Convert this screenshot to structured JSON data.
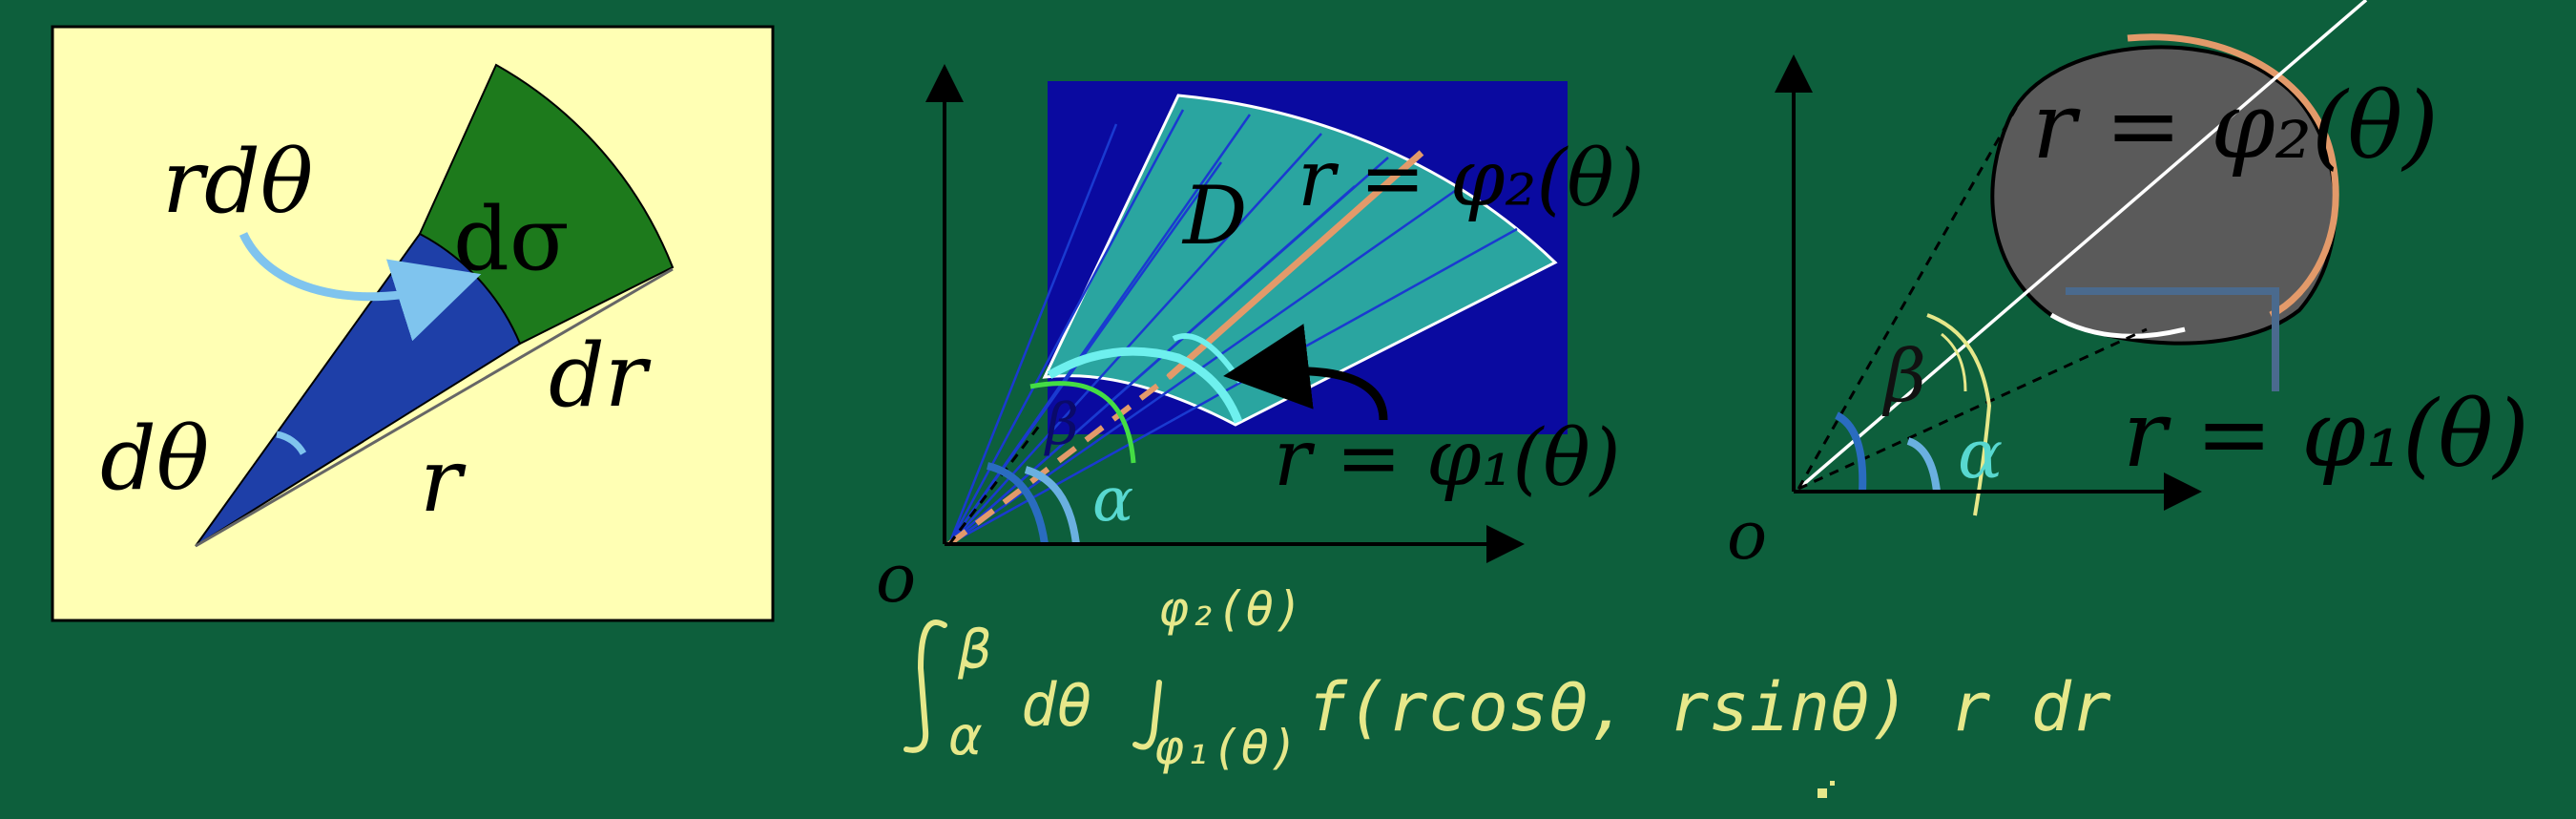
{
  "panel_left": {
    "label_rdtheta": "rdθ",
    "label_dsigma": "dσ",
    "label_dr": "dr",
    "label_dtheta": "dθ",
    "label_r": "r"
  },
  "panel_middle": {
    "label_D": "D",
    "curve_outer": "r = φ₂(θ)",
    "curve_inner": "r = φ₁(θ)",
    "alpha": "α",
    "beta": "β",
    "origin": "o"
  },
  "panel_right": {
    "curve_outer": "r = φ₂(θ)",
    "curve_inner": "r = φ₁(θ)",
    "alpha": "α",
    "beta": "β",
    "origin": "o"
  },
  "handwriting": {
    "lower_limit": "α",
    "upper_limit": "β",
    "d_theta": "dθ",
    "inner_upper": "φ₂(θ)",
    "inner_lower": "φ₁(θ)",
    "integrand": "f(rcosθ, rsinθ) r dr"
  },
  "colors": {
    "board": "#0d5f3c",
    "panel_bg": "#ffffb4",
    "sector_green": "#1d7a1c",
    "sector_blue": "#1e3fa8",
    "plot_blue": "#0a0aa0",
    "region_teal": "#2aa5a0",
    "chalk_yellow": "#e6e88a",
    "orange": "#e39a6a",
    "region_gray": "#5a5a5a"
  }
}
